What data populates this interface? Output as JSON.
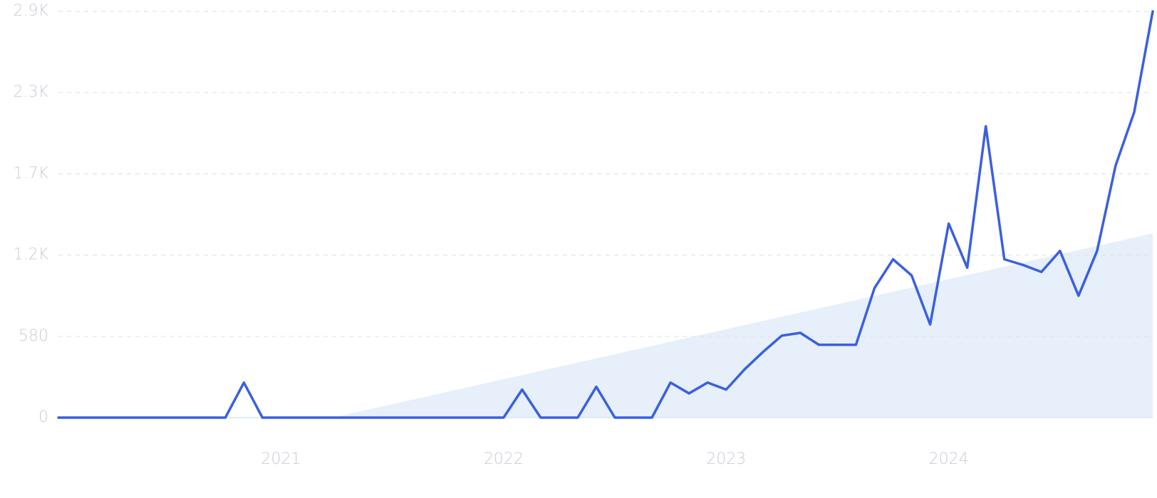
{
  "chart_data": {
    "type": "line",
    "categories": [
      null,
      null,
      null,
      null,
      null,
      null,
      null,
      null,
      null,
      null,
      null,
      null,
      "2021",
      null,
      null,
      null,
      null,
      null,
      null,
      null,
      null,
      null,
      null,
      null,
      "2022",
      null,
      null,
      null,
      null,
      null,
      null,
      null,
      null,
      null,
      null,
      null,
      "2023",
      null,
      null,
      null,
      null,
      null,
      null,
      null,
      null,
      null,
      null,
      null,
      "2024",
      null,
      null,
      null,
      null,
      null,
      null,
      null,
      null,
      null,
      null,
      null
    ],
    "values": [
      0,
      0,
      0,
      0,
      0,
      0,
      0,
      0,
      0,
      0,
      250,
      0,
      0,
      0,
      0,
      0,
      0,
      0,
      0,
      0,
      0,
      0,
      0,
      0,
      0,
      200,
      0,
      0,
      0,
      220,
      0,
      0,
      0,
      250,
      173,
      250,
      200,
      345,
      470,
      585,
      605,
      520,
      520,
      520,
      925,
      1130,
      1015,
      665,
      1385,
      1070,
      2080,
      1130,
      1090,
      1040,
      1190,
      870,
      1190,
      1800,
      2180,
      2900
    ],
    "color": "#3a5fe0",
    "trend": [
      -440,
      1315
    ],
    "trend_color": "#e6effa",
    "ylim": [
      0,
      2900
    ],
    "yticks": [
      0,
      580,
      {
        "value": 1160,
        "label": "1.2K"
      },
      {
        "value": 1740,
        "label": "1.7K"
      },
      {
        "value": 2320,
        "label": "2.3K"
      },
      {
        "value": 2900,
        "label": "2.9K"
      }
    ],
    "grid": true
  }
}
